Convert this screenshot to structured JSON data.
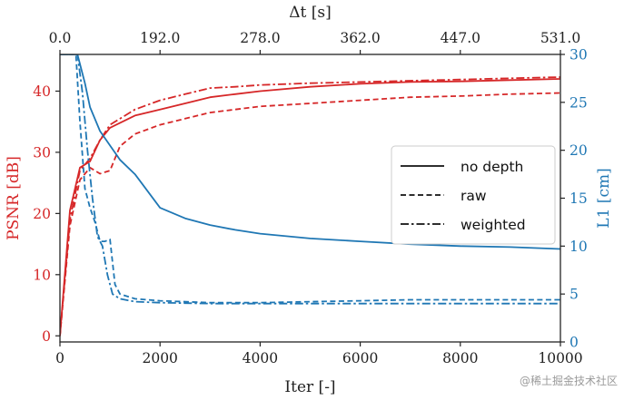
{
  "chart_data": {
    "type": "line",
    "xlabel": "Iter [-]",
    "x_top_label": "Δt [s]",
    "ylabel_left": "PSNR [dB]",
    "ylabel_right": "L1 [cm]",
    "xlim": [
      0,
      10000
    ],
    "ylim_left": [
      -1,
      46
    ],
    "ylim_right": [
      0,
      30
    ],
    "x_ticks": [
      0,
      2000,
      4000,
      6000,
      8000,
      10000
    ],
    "x_tick_labels": [
      "0",
      "2000",
      "4000",
      "6000",
      "8000",
      "10000"
    ],
    "x_top_ticks": [
      0,
      2000,
      4000,
      6000,
      8000,
      10000
    ],
    "x_top_tick_labels": [
      "0.0",
      "192.0",
      "278.0",
      "362.0",
      "447.0",
      "531.0"
    ],
    "y_left_ticks": [
      0,
      10,
      20,
      30,
      40
    ],
    "y_left_tick_labels": [
      "0",
      "10",
      "20",
      "30",
      "40"
    ],
    "y_right_ticks": [
      0,
      5,
      10,
      15,
      20,
      25,
      30
    ],
    "y_right_tick_labels": [
      "0",
      "5",
      "10",
      "15",
      "20",
      "25",
      "30"
    ],
    "colors": {
      "psnr": "#d62728",
      "l1": "#1f77b4",
      "frame": "#222222"
    },
    "legend": {
      "position": "center-right",
      "entries": [
        {
          "label": "no depth",
          "style": "solid"
        },
        {
          "label": "raw",
          "style": "dashed"
        },
        {
          "label": "weighted",
          "style": "dashdot"
        }
      ]
    },
    "series": [
      {
        "name": "PSNR no depth",
        "axis": "left",
        "style": "solid",
        "x": [
          0,
          200,
          400,
          600,
          800,
          1000,
          1500,
          2000,
          2500,
          3000,
          3500,
          4000,
          5000,
          6000,
          7000,
          8000,
          9000,
          10000
        ],
        "y": [
          0,
          20.5,
          27.5,
          28.5,
          32,
          34,
          36,
          37,
          38,
          39,
          39.5,
          40,
          40.7,
          41.2,
          41.5,
          41.6,
          41.8,
          42
        ]
      },
      {
        "name": "PSNR raw",
        "axis": "left",
        "style": "dashed",
        "x": [
          0,
          200,
          400,
          600,
          800,
          1000,
          1200,
          1500,
          2000,
          2500,
          3000,
          3500,
          4000,
          5000,
          6000,
          7000,
          8000,
          9000,
          10000
        ],
        "y": [
          0,
          18,
          25.5,
          27.5,
          26.5,
          27,
          31,
          33,
          34.5,
          35.5,
          36.5,
          37,
          37.5,
          38,
          38.5,
          39,
          39.2,
          39.5,
          39.7
        ]
      },
      {
        "name": "PSNR weighted",
        "axis": "left",
        "style": "dashdot",
        "x": [
          0,
          200,
          400,
          600,
          800,
          1000,
          1500,
          2000,
          2500,
          3000,
          3500,
          4000,
          5000,
          6000,
          7000,
          8000,
          9000,
          10000
        ],
        "y": [
          0,
          19,
          27,
          29,
          32,
          34.5,
          37,
          38.5,
          39.5,
          40.5,
          40.7,
          41,
          41.3,
          41.5,
          41.7,
          41.9,
          42.1,
          42.3
        ]
      },
      {
        "name": "L1 no depth",
        "axis": "right",
        "style": "solid",
        "x": [
          0,
          350,
          500,
          600,
          800,
          1000,
          1200,
          1500,
          2000,
          2500,
          3000,
          3500,
          4000,
          5000,
          6000,
          7000,
          8000,
          9000,
          10000
        ],
        "y": [
          30,
          30,
          27,
          24.5,
          22,
          20.5,
          19,
          17.5,
          14,
          12.9,
          12.2,
          11.7,
          11.3,
          10.8,
          10.5,
          10.2,
          10,
          9.9,
          9.7
        ]
      },
      {
        "name": "L1 raw",
        "axis": "right",
        "style": "dashed",
        "x": [
          0,
          320,
          400,
          500,
          600,
          700,
          800,
          900,
          1000,
          1100,
          1200,
          1500,
          2000,
          3000,
          4000,
          5000,
          6000,
          7000,
          8000,
          9000,
          10000
        ],
        "y": [
          30,
          30,
          23,
          16,
          14,
          12.5,
          10.5,
          10.5,
          10.7,
          6,
          5,
          4.5,
          4.3,
          4.1,
          4.1,
          4.2,
          4.3,
          4.4,
          4.4,
          4.4,
          4.4
        ]
      },
      {
        "name": "L1 weighted",
        "axis": "right",
        "style": "dashdot",
        "x": [
          0,
          350,
          450,
          550,
          650,
          750,
          850,
          950,
          1050,
          1200,
          1500,
          2000,
          3000,
          4000,
          5000,
          6000,
          7000,
          8000,
          9000,
          10000
        ],
        "y": [
          30,
          30,
          26,
          20,
          15,
          11,
          10,
          7,
          5,
          4.5,
          4.2,
          4.1,
          4.0,
          4.0,
          4.0,
          4.0,
          4.0,
          4.0,
          4.0,
          4.0
        ]
      }
    ]
  },
  "watermark": "@稀土掘金技术社区"
}
